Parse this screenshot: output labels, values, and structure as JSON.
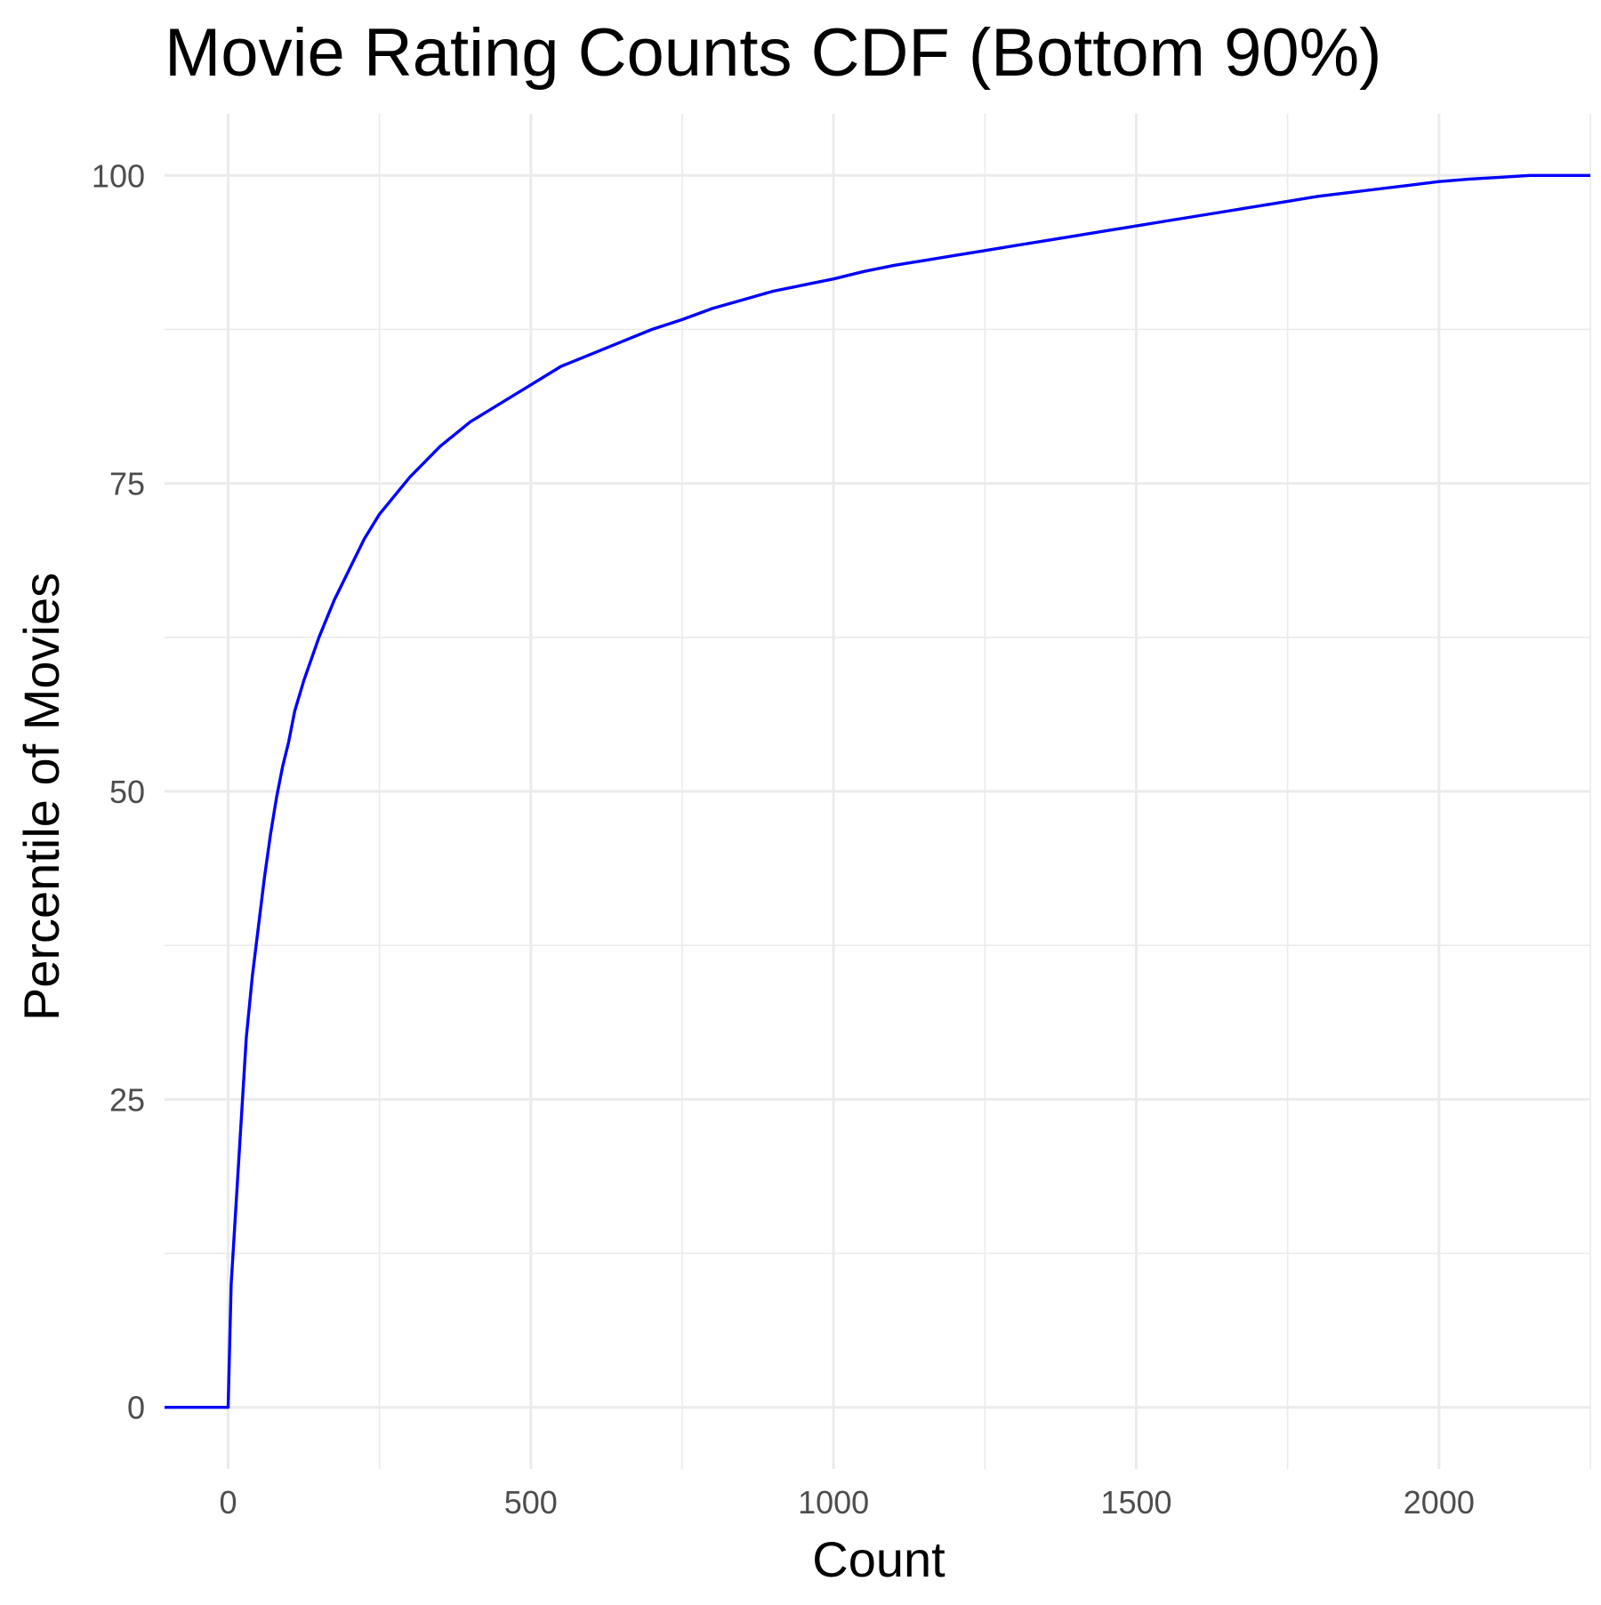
{
  "chart_data": {
    "type": "line",
    "title": "Movie Rating Counts CDF (Bottom 90%)",
    "xlabel": "Count",
    "ylabel": "Percentile of Movies",
    "xlim": [
      -105,
      2250
    ],
    "ylim": [
      -5,
      105
    ],
    "x_ticks": [
      0,
      500,
      1000,
      1500,
      2000
    ],
    "x_tick_labels": [
      "0",
      "500",
      "1000",
      "1500",
      "2000"
    ],
    "y_ticks": [
      0,
      25,
      50,
      75,
      100
    ],
    "y_tick_labels": [
      "0",
      "25",
      "50",
      "75",
      "100"
    ],
    "grid": true,
    "legend": "none",
    "line_color": "#0000ff",
    "series": [
      {
        "x": [
          -105,
          0,
          5,
          10,
          15,
          20,
          25,
          30,
          40,
          50,
          60,
          70,
          80,
          90,
          100,
          110,
          125,
          150,
          175,
          200,
          225,
          250,
          300,
          350,
          400,
          450,
          500,
          550,
          600,
          650,
          700,
          750,
          800,
          850,
          900,
          950,
          1000,
          1050,
          1100,
          1150,
          1200,
          1250,
          1300,
          1350,
          1400,
          1450,
          1500,
          1550,
          1600,
          1650,
          1700,
          1750,
          1800,
          1850,
          1900,
          1950,
          2000,
          2050,
          2100,
          2150,
          2250
        ],
        "y": [
          0,
          0,
          10,
          14,
          18,
          22,
          26,
          30,
          35,
          39,
          43,
          46.5,
          49.5,
          52,
          54,
          56.5,
          59,
          62.5,
          65.5,
          68,
          70.5,
          72.5,
          75.5,
          78,
          80,
          81.5,
          83,
          84.5,
          85.5,
          86.5,
          87.5,
          88.3,
          89.2,
          89.9,
          90.6,
          91.1,
          91.6,
          92.2,
          92.7,
          93.1,
          93.5,
          93.9,
          94.3,
          94.7,
          95.1,
          95.5,
          95.9,
          96.3,
          96.7,
          97.1,
          97.5,
          97.9,
          98.3,
          98.6,
          98.9,
          99.2,
          99.5,
          99.7,
          99.85,
          100,
          100
        ]
      }
    ]
  }
}
